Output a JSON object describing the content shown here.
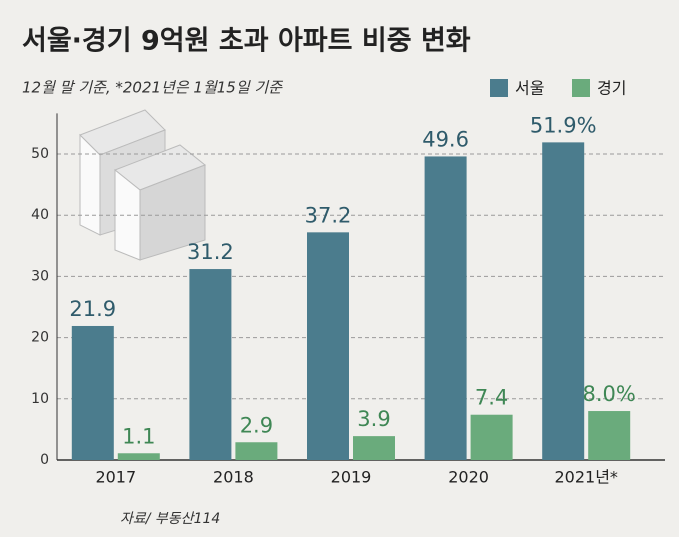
{
  "chart_data": {
    "type": "bar",
    "title": "서울·경기 9억원 초과 아파트 비중 변화",
    "subtitle": "12월 말 기준, *2021년은 1월15일 기준",
    "source": "자료/ 부동산114",
    "categories": [
      "2017",
      "2018",
      "2019",
      "2020",
      "2021년*"
    ],
    "series": [
      {
        "name": "서울",
        "color": "#4b7c8d",
        "values": [
          21.9,
          31.2,
          37.2,
          49.6,
          51.9
        ],
        "value_labels": [
          "21.9",
          "31.2",
          "37.2",
          "49.6",
          "51.9%"
        ]
      },
      {
        "name": "경기",
        "color": "#6aab7c",
        "values": [
          1.1,
          2.9,
          3.9,
          7.4,
          8.0
        ],
        "value_labels": [
          "1.1",
          "2.9",
          "3.9",
          "7.4",
          "8.0%"
        ]
      }
    ],
    "ylim": [
      0,
      55
    ],
    "yticks": [
      0,
      10,
      20,
      30,
      40,
      50
    ],
    "grid": true,
    "legend": "top-right"
  }
}
